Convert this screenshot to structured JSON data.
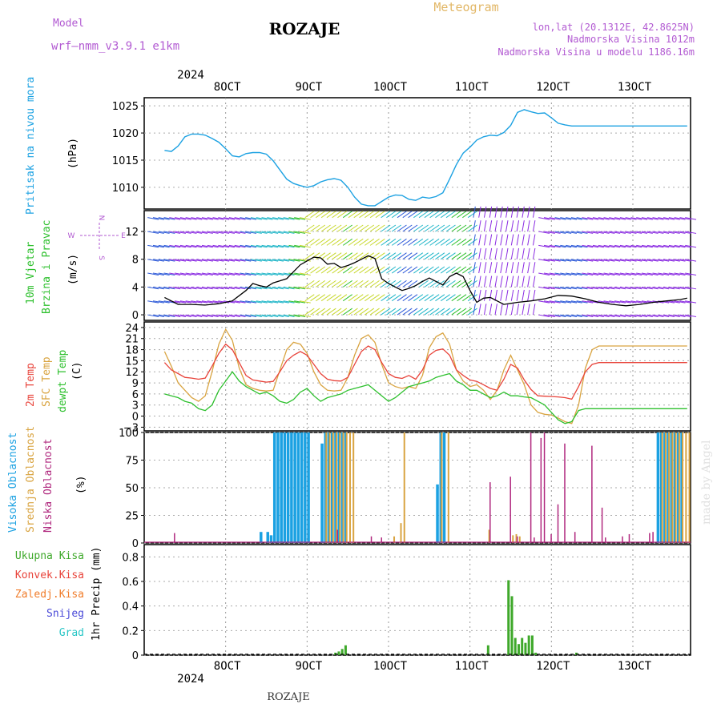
{
  "header": {
    "model_label": "Model",
    "model_name": "wrf–nmm_v3.9.1  e1km",
    "station": "ROZAJE",
    "product": "Meteogram",
    "coords": "lon,lat (20.1312E, 42.8625N)",
    "elevation": "Nadmorska Visina 1012m",
    "model_elevation": "Nadmorska Visina u modelu 1186.16m",
    "footer_station": "ROZAJE",
    "credit": "made by Angel"
  },
  "time_axis": {
    "year": "2024",
    "ticks": [
      "8OCT",
      "9OCT",
      "10OCT",
      "11OCT",
      "12OCT",
      "13OCT"
    ]
  },
  "colors": {
    "pressure": "#1ba1e2",
    "temp2m": "#e8433a",
    "sfc_temp": "#d9a441",
    "dewpt": "#2ec02e",
    "high_cloud": "#1ba1e2",
    "mid_cloud": "#d9a441",
    "low_cloud": "#b0287e",
    "wind_speed": "#000000",
    "gust": "#e8433a",
    "total_precip": "#3fa92b",
    "conv_precip": "#e8433a",
    "frozen_precip": "#f07c2a",
    "snow": "#4a4ad8",
    "graupel": "#29c6c6",
    "model_label": "#b25ad2",
    "meteogram": "#e2b766"
  },
  "panels": {
    "pressure": {
      "label": "Pritisak na nivou mora",
      "unit": "(hPa)",
      "ticks": [
        1010,
        1015,
        1020,
        1025
      ]
    },
    "wind": {
      "label1": "10m Vjetar",
      "label2": "Brzina i Pravac",
      "unit": "(m/s)",
      "ticks": [
        0,
        4,
        8,
        12
      ],
      "compass_n": "N",
      "compass_w": "W",
      "compass_e": "E",
      "compass_s": "S"
    },
    "temp": {
      "label1": "2m Temp",
      "label2": "SFC Temp",
      "label3": "dewpt Temp",
      "unit": "(C)",
      "ticks": [
        -3,
        0,
        3,
        6,
        9,
        12,
        15,
        18,
        21,
        24
      ]
    },
    "cloud": {
      "label1": "Visoka Oblacnost",
      "label2": "Srednja Oblacnost",
      "label3": "Niska Oblacnost",
      "unit": "(%)",
      "ticks": [
        0,
        25,
        50,
        75,
        100
      ]
    },
    "precip": {
      "label": "1hr Precip (mm)",
      "ticks": [
        0,
        0.2,
        0.4,
        0.6,
        0.8
      ],
      "legend": [
        "Ukupna Kisa",
        "Konvek.Kisa",
        "Zaledj.Kisa",
        "Snijeg",
        "Grad"
      ]
    }
  },
  "chart_data": [
    {
      "type": "line",
      "title": "Pritisak na nivou mora",
      "ylabel": "(hPa)",
      "ylim": [
        1006,
        1026.5
      ],
      "x_unit": "hours from 7 Oct 2024 12 UTC",
      "series": [
        {
          "name": "Pritisak na nivou mora",
          "x": [
            0,
            2,
            4,
            6,
            8,
            10,
            12,
            14,
            16,
            18,
            20,
            22,
            24,
            26,
            28,
            30,
            32,
            34,
            36,
            38,
            40,
            42,
            44,
            46,
            48,
            50,
            52,
            54,
            56,
            58,
            60,
            62,
            64,
            66,
            68,
            70,
            72,
            74,
            76,
            78,
            80,
            82,
            84,
            86,
            88,
            90,
            92,
            94,
            96,
            98,
            100,
            102,
            104,
            106,
            108,
            110,
            112,
            114,
            116,
            118,
            120,
            122,
            124,
            126,
            128,
            130,
            132,
            134,
            136,
            138,
            140,
            142,
            144,
            146,
            148,
            150,
            152,
            154
          ],
          "values": [
            1016.8,
            1016.6,
            1017.6,
            1019.3,
            1019.8,
            1019.8,
            1019.6,
            1019.0,
            1018.3,
            1017.1,
            1015.8,
            1015.6,
            1016.2,
            1016.4,
            1016.4,
            1016.1,
            1014.9,
            1013.2,
            1011.5,
            1010.7,
            1010.3,
            1010.0,
            1010.3,
            1011.0,
            1011.4,
            1011.6,
            1011.3,
            1010.0,
            1008.2,
            1006.9,
            1006.6,
            1006.6,
            1007.4,
            1008.2,
            1008.6,
            1008.5,
            1007.8,
            1007.6,
            1008.2,
            1008.0,
            1008.3,
            1009.0,
            1011.5,
            1014.2,
            1016.3,
            1017.4,
            1018.7,
            1019.3,
            1019.6,
            1019.5,
            1020.1,
            1021.4,
            1023.8,
            1024.3,
            1023.9,
            1023.6,
            1023.7,
            1022.8,
            1021.8,
            1021.5,
            1021.3,
            1021.3,
            1021.3,
            1021.3,
            1021.3,
            1021.3,
            1021.3,
            1021.3,
            1021.3,
            1021.3,
            1021.3,
            1021.3,
            1021.3,
            1021.3,
            1021.3,
            1021.3,
            1021.3,
            1021.3
          ]
        }
      ]
    },
    {
      "type": "line",
      "title": "10m Vjetar Brzina i Pravac",
      "ylabel": "(m/s)",
      "ylim": [
        -0.8,
        15
      ],
      "series": [
        {
          "name": "wind speed",
          "x": [
            0,
            4,
            8,
            12,
            16,
            20,
            24,
            26,
            28,
            30,
            32,
            36,
            40,
            44,
            46,
            48,
            50,
            52,
            54,
            56,
            58,
            60,
            62,
            64,
            66,
            68,
            70,
            72,
            74,
            76,
            78,
            80,
            82,
            84,
            86,
            88,
            90,
            92,
            94,
            96,
            100,
            104,
            108,
            112,
            116,
            120,
            124,
            128,
            132,
            136,
            140,
            144,
            148,
            152,
            154
          ],
          "values": [
            2.5,
            1.5,
            1.5,
            1.4,
            1.6,
            2.0,
            3.5,
            4.5,
            4.2,
            4.0,
            4.6,
            5.2,
            7.2,
            8.3,
            8.2,
            7.3,
            7.4,
            6.8,
            7.1,
            7.5,
            8.0,
            8.5,
            8.1,
            5.2,
            4.5,
            4.0,
            3.5,
            3.8,
            4.2,
            4.8,
            5.3,
            4.8,
            4.3,
            5.5,
            6.0,
            5.5,
            3.5,
            1.8,
            2.4,
            2.5,
            1.5,
            1.8,
            2.0,
            2.3,
            2.8,
            2.7,
            2.3,
            1.8,
            1.5,
            1.3,
            1.5,
            1.8,
            2.0,
            2.2,
            2.4
          ]
        }
      ]
    },
    {
      "type": "line",
      "title": "Temp",
      "ylabel": "(C)",
      "ylim": [
        -4,
        25.5
      ],
      "series": [
        {
          "name": "2m Temp",
          "x": [
            0,
            2,
            4,
            6,
            8,
            10,
            12,
            14,
            16,
            18,
            20,
            22,
            24,
            26,
            28,
            30,
            32,
            34,
            36,
            38,
            40,
            42,
            44,
            46,
            48,
            50,
            52,
            54,
            56,
            58,
            60,
            62,
            64,
            66,
            68,
            70,
            72,
            74,
            76,
            78,
            80,
            82,
            84,
            86,
            88,
            90,
            92,
            94,
            96,
            98,
            100,
            102,
            104,
            106,
            108,
            110,
            112,
            114,
            116,
            118,
            120,
            122,
            124,
            126,
            128,
            130,
            132,
            134,
            136,
            138,
            140,
            142,
            144,
            146,
            148,
            150,
            152,
            154
          ],
          "values": [
            14.5,
            12.5,
            11.5,
            10.5,
            10.3,
            10.0,
            10.3,
            13.5,
            17.0,
            19.5,
            18.0,
            14.5,
            11.0,
            9.8,
            9.5,
            9.2,
            9.4,
            12.0,
            15.0,
            16.5,
            17.5,
            16.5,
            14.0,
            11.5,
            10.0,
            9.6,
            9.5,
            10.5,
            14.0,
            17.5,
            19.0,
            18.0,
            14.5,
            11.5,
            10.5,
            10.2,
            11.0,
            10.0,
            12.5,
            16.5,
            17.8,
            18.2,
            16.5,
            12.5,
            11.0,
            9.8,
            9.4,
            8.5,
            7.5,
            7.0,
            10.0,
            14.0,
            13.0,
            9.8,
            7.2,
            5.5,
            5.4,
            5.3,
            5.2,
            5.0,
            4.6,
            8.0,
            12.0,
            14.0,
            14.5,
            14.5,
            14.5,
            14.5,
            14.5,
            14.5,
            14.5,
            14.5,
            14.5,
            14.5,
            14.5,
            14.5,
            14.5,
            14.5
          ]
        },
        {
          "name": "SFC Temp",
          "x": [
            0,
            2,
            4,
            6,
            8,
            10,
            12,
            14,
            16,
            18,
            20,
            22,
            24,
            26,
            28,
            30,
            32,
            34,
            36,
            38,
            40,
            42,
            44,
            46,
            48,
            50,
            52,
            54,
            56,
            58,
            60,
            62,
            64,
            66,
            68,
            70,
            72,
            74,
            76,
            78,
            80,
            82,
            84,
            86,
            88,
            90,
            92,
            94,
            96,
            98,
            100,
            102,
            104,
            106,
            108,
            110,
            112,
            114,
            116,
            118,
            120,
            122,
            124,
            126,
            128,
            130,
            132,
            134,
            136,
            138,
            140,
            142,
            144,
            146,
            148,
            150,
            152,
            154
          ],
          "values": [
            17.5,
            13.5,
            9.0,
            7.0,
            5.0,
            4.0,
            5.5,
            12.0,
            19.5,
            23.5,
            20.5,
            13.0,
            8.5,
            7.5,
            7.0,
            6.8,
            7.0,
            12.5,
            18.0,
            20.0,
            19.5,
            17.0,
            12.0,
            8.5,
            7.0,
            6.8,
            7.0,
            10.5,
            16.5,
            21.0,
            22.0,
            20.0,
            14.0,
            9.0,
            8.0,
            7.5,
            8.0,
            7.5,
            11.0,
            18.5,
            21.5,
            22.5,
            19.5,
            12.5,
            9.5,
            8.0,
            8.5,
            7.0,
            4.5,
            7.0,
            12.5,
            16.5,
            12.5,
            8.5,
            3.0,
            1.0,
            0.5,
            0.3,
            -0.5,
            -1.5,
            -2.0,
            3.0,
            13.0,
            18.0,
            19.0,
            19.0,
            19.0,
            19.0,
            19.0,
            19.0,
            19.0,
            19.0,
            19.0,
            19.0,
            19.0,
            19.0,
            19.0,
            19.0
          ]
        },
        {
          "name": "dewpt Temp",
          "x": [
            0,
            2,
            4,
            6,
            8,
            10,
            12,
            14,
            16,
            18,
            20,
            22,
            24,
            26,
            28,
            30,
            32,
            34,
            36,
            38,
            40,
            42,
            44,
            46,
            48,
            50,
            52,
            54,
            56,
            58,
            60,
            62,
            64,
            66,
            68,
            70,
            72,
            74,
            76,
            78,
            80,
            82,
            84,
            86,
            88,
            90,
            92,
            94,
            96,
            98,
            100,
            102,
            104,
            106,
            108,
            110,
            112,
            114,
            116,
            118,
            120,
            122,
            124,
            126,
            128,
            130,
            132,
            134,
            136,
            138,
            140,
            142,
            144,
            146,
            148,
            150,
            152,
            154
          ],
          "values": [
            6.0,
            5.5,
            5.0,
            4.0,
            3.5,
            2.0,
            1.5,
            3.0,
            7.0,
            9.5,
            12.0,
            9.5,
            8.0,
            7.0,
            6.0,
            6.5,
            5.5,
            4.0,
            3.5,
            4.5,
            6.5,
            7.5,
            5.5,
            4.0,
            5.0,
            5.5,
            6.0,
            7.0,
            7.5,
            8.0,
            8.5,
            7.0,
            5.5,
            4.0,
            5.0,
            6.5,
            8.0,
            8.5,
            9.0,
            9.5,
            10.5,
            11.0,
            11.5,
            9.5,
            8.5,
            7.0,
            7.0,
            6.0,
            5.0,
            5.5,
            6.5,
            5.5,
            5.5,
            5.2,
            5.0,
            4.0,
            3.0,
            1.0,
            -1.0,
            -2.0,
            -1.5,
            1.5,
            2.0,
            2.0,
            2.0,
            2.0,
            2.0,
            2.0,
            2.0,
            2.0,
            2.0,
            2.0,
            2.0,
            2.0,
            2.0,
            2.0,
            2.0,
            2.0
          ]
        }
      ]
    },
    {
      "type": "bar",
      "title": "Oblacnost",
      "ylabel": "(%)",
      "ylim": [
        0,
        100
      ],
      "series": [
        {
          "name": "Visoka Oblacnost",
          "x": [
            28,
            30,
            31,
            32,
            33,
            34,
            35,
            36,
            37,
            38,
            39,
            40,
            41,
            42,
            46,
            47,
            48,
            49,
            50,
            51,
            52,
            53,
            80,
            81,
            82,
            145,
            146,
            147,
            148,
            149,
            150,
            151,
            152
          ],
          "values": [
            10,
            10,
            7,
            100,
            100,
            100,
            100,
            100,
            100,
            100,
            100,
            100,
            100,
            100,
            90,
            100,
            100,
            100,
            100,
            100,
            100,
            100,
            53,
            100,
            100,
            100,
            100,
            100,
            100,
            100,
            100,
            100,
            100
          ]
        },
        {
          "name": "Srednja Oblacnost",
          "x": [
            47,
            48,
            49,
            50,
            51,
            52,
            53,
            54,
            55,
            67,
            69,
            70,
            81,
            83,
            95,
            102,
            103,
            104,
            146,
            147,
            148,
            149,
            150,
            151,
            152,
            153,
            154
          ],
          "values": [
            100,
            100,
            100,
            100,
            100,
            100,
            100,
            100,
            100,
            6,
            18,
            100,
            100,
            100,
            12,
            7,
            8,
            6,
            100,
            100,
            100,
            100,
            100,
            100,
            100,
            100,
            100
          ]
        },
        {
          "name": "Niska Oblacnost",
          "x": [
            2,
            50,
            60,
            63,
            95,
            101,
            103,
            107,
            108,
            110,
            111,
            113,
            115,
            117,
            120,
            125,
            128,
            129,
            134,
            136,
            142,
            143
          ],
          "values": [
            9,
            12,
            6,
            5,
            55,
            60,
            6,
            100,
            5,
            95,
            100,
            8,
            35,
            90,
            10,
            88,
            32,
            5,
            6,
            8,
            9,
            10
          ]
        }
      ]
    },
    {
      "type": "bar",
      "title": "1hr Precip",
      "ylabel": "1hr Precip (mm)",
      "ylim": [
        0,
        0.9
      ],
      "series": [
        {
          "name": "Ukupna Kisa",
          "x": [
            50,
            51,
            52,
            53,
            95,
            101,
            102,
            103,
            104,
            105,
            106,
            107,
            108,
            109,
            121
          ],
          "values": [
            0.02,
            0.03,
            0.05,
            0.08,
            0.08,
            0.61,
            0.48,
            0.14,
            0.09,
            0.14,
            0.1,
            0.16,
            0.16,
            0.02,
            0.02
          ]
        }
      ]
    }
  ]
}
